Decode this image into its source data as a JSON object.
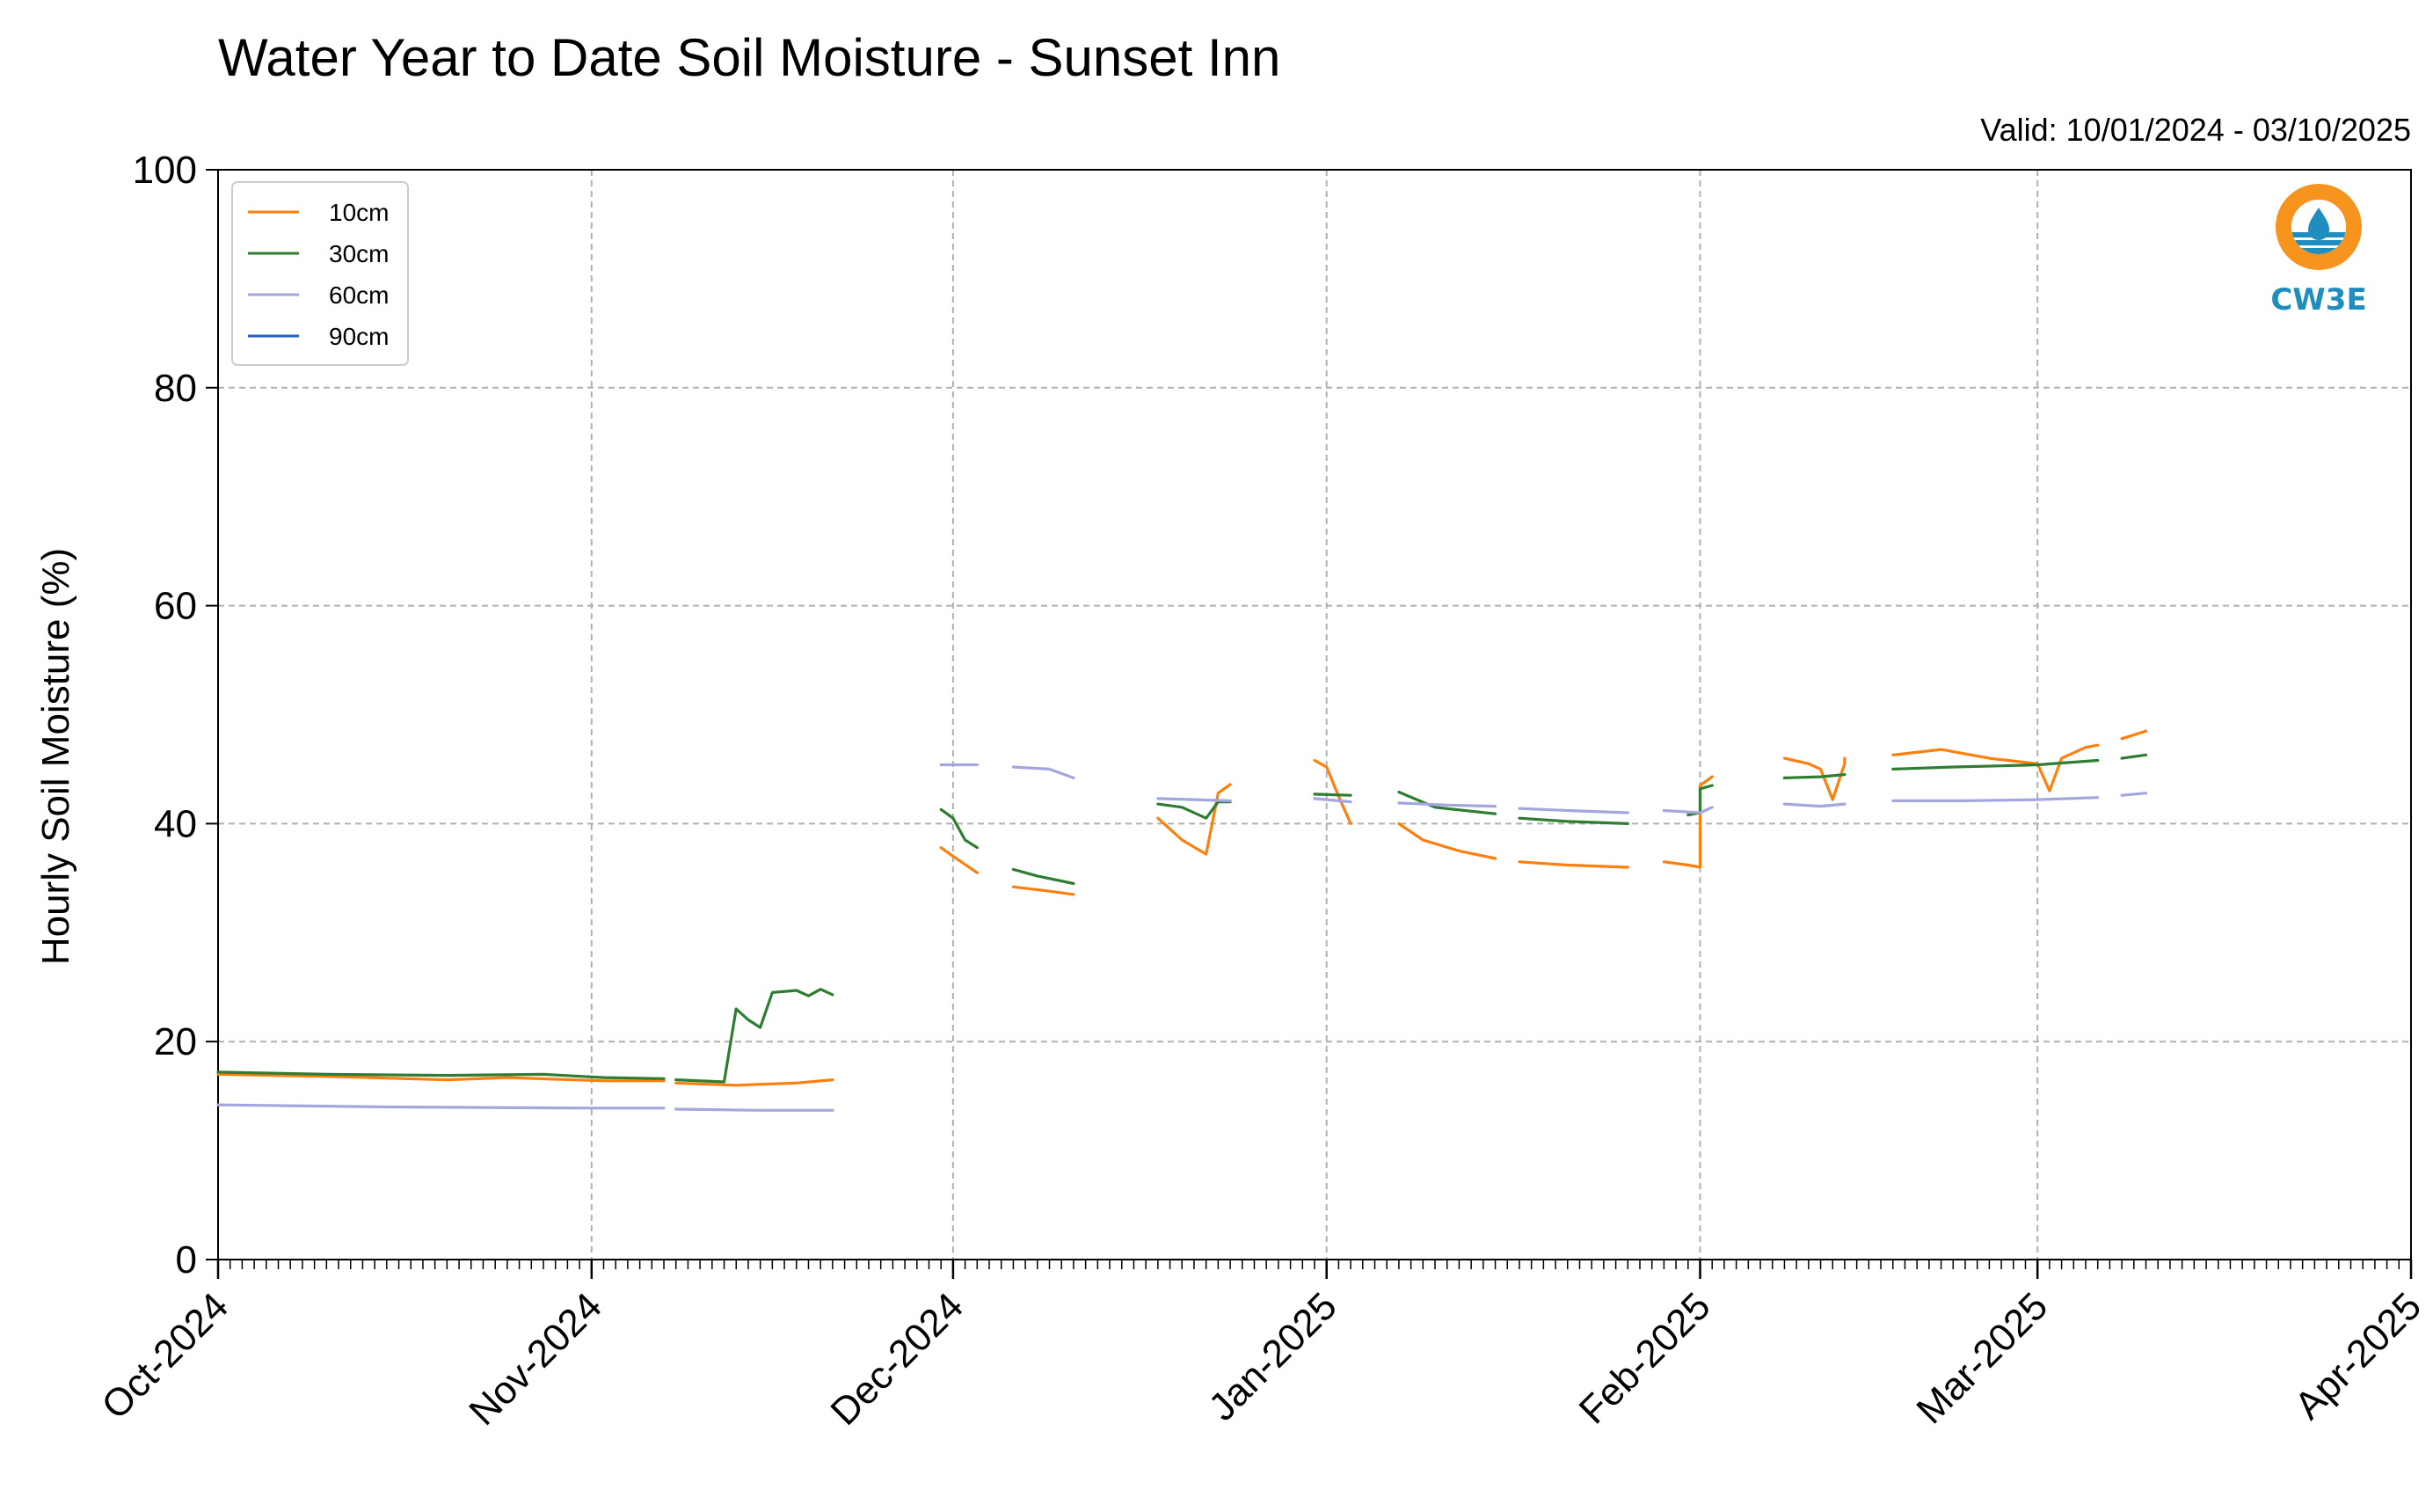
{
  "chart_data": {
    "type": "line",
    "title": "Water Year to Date Soil Moisture - Sunset Inn",
    "subtitle": "Valid: 10/01/2024 - 03/10/2025",
    "ylabel": "Hourly Soil Moisture (%)",
    "xlabel": "",
    "ylim": [
      0,
      100
    ],
    "xlim": [
      "2024-10-01",
      "2025-04-01"
    ],
    "yticks": [
      0,
      20,
      40,
      60,
      80,
      100
    ],
    "xticks": [
      {
        "date": "2024-10-01",
        "label": "Oct-2024"
      },
      {
        "date": "2024-11-01",
        "label": "Nov-2024"
      },
      {
        "date": "2024-12-01",
        "label": "Dec-2024"
      },
      {
        "date": "2025-01-01",
        "label": "Jan-2025"
      },
      {
        "date": "2025-02-01",
        "label": "Feb-2025"
      },
      {
        "date": "2025-03-01",
        "label": "Mar-2025"
      },
      {
        "date": "2025-04-01",
        "label": "Apr-2025"
      }
    ],
    "grid": true,
    "legend_position": "top-left",
    "series": [
      {
        "name": "10cm",
        "color": "#ff7f0e",
        "segments": [
          [
            [
              "2024-10-01",
              17.0
            ],
            [
              "2024-10-10",
              16.8
            ],
            [
              "2024-10-20",
              16.5
            ],
            [
              "2024-10-25",
              16.7
            ],
            [
              "2024-11-02",
              16.4
            ],
            [
              "2024-11-07",
              16.4
            ]
          ],
          [
            [
              "2024-11-08",
              16.2
            ],
            [
              "2024-11-13",
              16.0
            ],
            [
              "2024-11-18",
              16.2
            ],
            [
              "2024-11-21",
              16.5
            ]
          ],
          [
            [
              "2024-11-30",
              37.8
            ],
            [
              "2024-12-01",
              37.0
            ],
            [
              "2024-12-03",
              35.5
            ]
          ],
          [
            [
              "2024-12-06",
              34.2
            ],
            [
              "2024-12-09",
              33.8
            ],
            [
              "2024-12-11",
              33.5
            ]
          ],
          [
            [
              "2024-12-18",
              40.5
            ],
            [
              "2024-12-20",
              38.5
            ],
            [
              "2024-12-22",
              37.2
            ],
            [
              "2024-12-23",
              42.8
            ],
            [
              "2024-12-24",
              43.6
            ]
          ],
          [
            [
              "2024-12-31",
              45.8
            ],
            [
              "2025-01-01",
              45.2
            ],
            [
              "2025-01-02",
              42.5
            ],
            [
              "2025-01-03",
              40.0
            ]
          ],
          [
            [
              "2025-01-07",
              40.0
            ],
            [
              "2025-01-09",
              38.5
            ],
            [
              "2025-01-12",
              37.5
            ],
            [
              "2025-01-15",
              36.8
            ]
          ],
          [
            [
              "2025-01-17",
              36.5
            ],
            [
              "2025-01-21",
              36.2
            ],
            [
              "2025-01-26",
              36.0
            ]
          ],
          [
            [
              "2025-01-29",
              36.5
            ],
            [
              "2025-01-31",
              36.2
            ],
            [
              "2025-02-01",
              36.0
            ],
            [
              "2025-02-01",
              43.5
            ],
            [
              "2025-02-02",
              44.3
            ]
          ],
          [
            [
              "2025-02-08",
              46.0
            ],
            [
              "2025-02-10",
              45.5
            ],
            [
              "2025-02-11",
              45.0
            ],
            [
              "2025-02-12",
              42.2
            ],
            [
              "2025-02-13",
              45.5
            ],
            [
              "2025-02-13",
              46.0
            ]
          ],
          [
            [
              "2025-02-17",
              46.3
            ],
            [
              "2025-02-21",
              46.8
            ],
            [
              "2025-02-25",
              46.0
            ],
            [
              "2025-03-01",
              45.5
            ],
            [
              "2025-03-02",
              43.0
            ],
            [
              "2025-03-03",
              46.0
            ],
            [
              "2025-03-05",
              47.0
            ],
            [
              "2025-03-06",
              47.2
            ]
          ],
          [
            [
              "2025-03-08",
              47.8
            ],
            [
              "2025-03-10",
              48.5
            ]
          ]
        ]
      },
      {
        "name": "30cm",
        "color": "#2e7d32",
        "segments": [
          [
            [
              "2024-10-01",
              17.2
            ],
            [
              "2024-10-10",
              17.0
            ],
            [
              "2024-10-20",
              16.9
            ],
            [
              "2024-10-28",
              17.0
            ],
            [
              "2024-11-02",
              16.7
            ],
            [
              "2024-11-07",
              16.6
            ]
          ],
          [
            [
              "2024-11-08",
              16.5
            ],
            [
              "2024-11-12",
              16.3
            ],
            [
              "2024-11-13",
              23.0
            ],
            [
              "2024-11-14",
              22.0
            ],
            [
              "2024-11-15",
              21.3
            ],
            [
              "2024-11-16",
              24.5
            ],
            [
              "2024-11-18",
              24.7
            ],
            [
              "2024-11-19",
              24.2
            ],
            [
              "2024-11-20",
              24.8
            ],
            [
              "2024-11-21",
              24.3
            ]
          ],
          [
            [
              "2024-11-30",
              41.3
            ],
            [
              "2024-12-01",
              40.5
            ],
            [
              "2024-12-02",
              38.5
            ],
            [
              "2024-12-03",
              37.8
            ]
          ],
          [
            [
              "2024-12-06",
              35.8
            ],
            [
              "2024-12-08",
              35.2
            ],
            [
              "2024-12-11",
              34.5
            ]
          ],
          [
            [
              "2024-12-18",
              41.8
            ],
            [
              "2024-12-20",
              41.5
            ],
            [
              "2024-12-22",
              40.5
            ],
            [
              "2024-12-23",
              42.0
            ],
            [
              "2024-12-24",
              42.0
            ]
          ],
          [
            [
              "2024-12-31",
              42.7
            ],
            [
              "2025-01-03",
              42.6
            ]
          ],
          [
            [
              "2025-01-07",
              42.9
            ],
            [
              "2025-01-10",
              41.5
            ],
            [
              "2025-01-15",
              40.9
            ]
          ],
          [
            [
              "2025-01-17",
              40.5
            ],
            [
              "2025-01-21",
              40.2
            ],
            [
              "2025-01-26",
              40.0
            ]
          ],
          [
            [
              "2025-01-31",
              40.8
            ],
            [
              "2025-02-01",
              41.0
            ],
            [
              "2025-02-01",
              43.2
            ],
            [
              "2025-02-02",
              43.5
            ]
          ],
          [
            [
              "2025-02-08",
              44.2
            ],
            [
              "2025-02-11",
              44.3
            ],
            [
              "2025-02-13",
              44.5
            ]
          ],
          [
            [
              "2025-02-17",
              45.0
            ],
            [
              "2025-02-22",
              45.2
            ],
            [
              "2025-02-26",
              45.3
            ],
            [
              "2025-03-01",
              45.4
            ],
            [
              "2025-03-06",
              45.8
            ]
          ],
          [
            [
              "2025-03-08",
              46.0
            ],
            [
              "2025-03-10",
              46.3
            ]
          ]
        ]
      },
      {
        "name": "60cm",
        "color": "#a4a6de",
        "segments": [
          [
            [
              "2024-10-01",
              14.2
            ],
            [
              "2024-10-15",
              14.0
            ],
            [
              "2024-11-01",
              13.9
            ],
            [
              "2024-11-07",
              13.9
            ]
          ],
          [
            [
              "2024-11-08",
              13.8
            ],
            [
              "2024-11-15",
              13.7
            ],
            [
              "2024-11-21",
              13.7
            ]
          ],
          [
            [
              "2024-11-30",
              45.4
            ],
            [
              "2024-12-03",
              45.4
            ]
          ],
          [
            [
              "2024-12-06",
              45.2
            ],
            [
              "2024-12-09",
              45.0
            ],
            [
              "2024-12-11",
              44.2
            ]
          ],
          [
            [
              "2024-12-18",
              42.3
            ],
            [
              "2024-12-24",
              42.1
            ]
          ],
          [
            [
              "2024-12-31",
              42.3
            ],
            [
              "2025-01-03",
              42.0
            ]
          ],
          [
            [
              "2025-01-07",
              41.9
            ],
            [
              "2025-01-11",
              41.7
            ],
            [
              "2025-01-15",
              41.6
            ]
          ],
          [
            [
              "2025-01-17",
              41.4
            ],
            [
              "2025-01-21",
              41.2
            ],
            [
              "2025-01-26",
              41.0
            ]
          ],
          [
            [
              "2025-01-29",
              41.2
            ],
            [
              "2025-02-01",
              41.0
            ],
            [
              "2025-02-02",
              41.5
            ]
          ],
          [
            [
              "2025-02-08",
              41.8
            ],
            [
              "2025-02-11",
              41.6
            ],
            [
              "2025-02-13",
              41.8
            ]
          ],
          [
            [
              "2025-02-17",
              42.1
            ],
            [
              "2025-02-23",
              42.1
            ],
            [
              "2025-03-01",
              42.2
            ],
            [
              "2025-03-06",
              42.4
            ]
          ],
          [
            [
              "2025-03-08",
              42.6
            ],
            [
              "2025-03-10",
              42.8
            ]
          ]
        ]
      },
      {
        "name": "90cm",
        "color": "#1f5fbf",
        "segments": []
      }
    ]
  },
  "logo": {
    "text": "CW3E",
    "ring_color": "#f7941d",
    "wave_color": "#1f8dbd"
  }
}
